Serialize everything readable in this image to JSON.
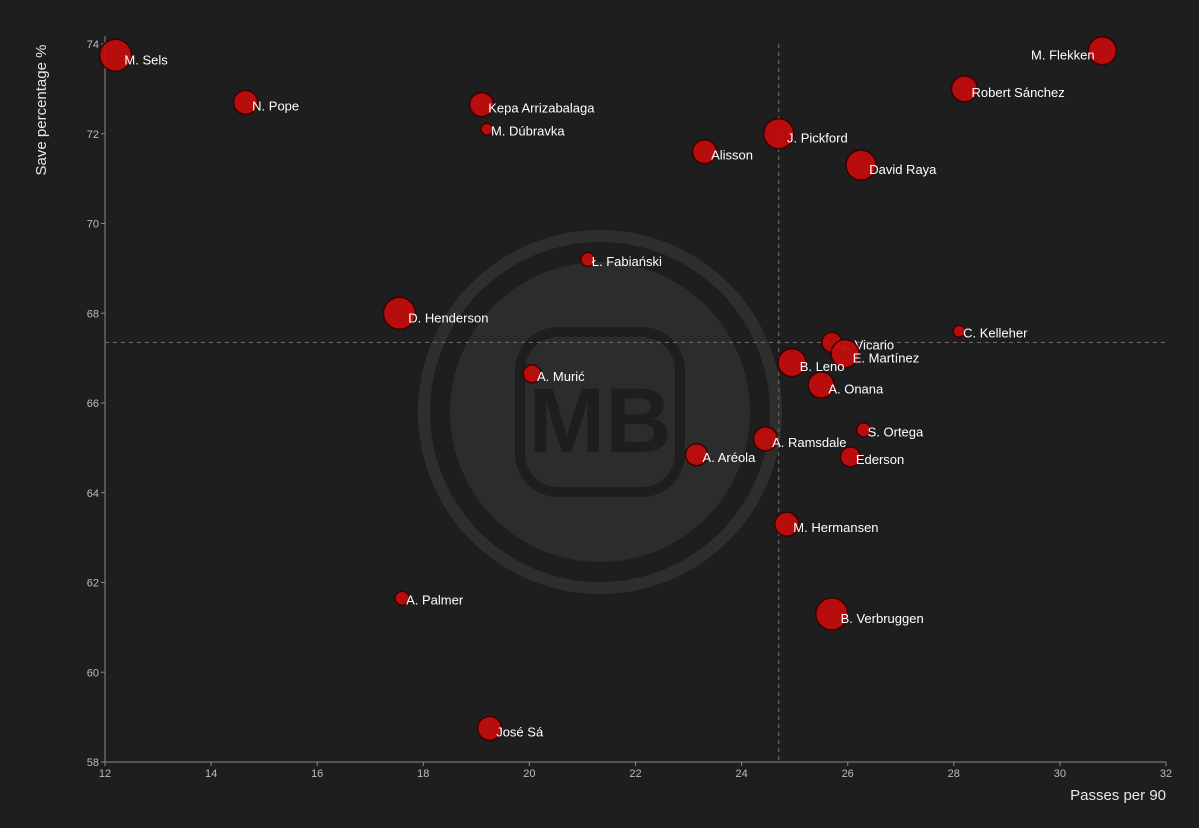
{
  "chart_data": {
    "type": "scatter",
    "xlabel": "Passes per 90",
    "ylabel": "Save percentage %",
    "xlim": [
      12,
      32
    ],
    "ylim": [
      58,
      74
    ],
    "x_ticks": [
      12,
      14,
      16,
      18,
      20,
      22,
      24,
      26,
      28,
      30,
      32
    ],
    "y_ticks": [
      58,
      60,
      62,
      64,
      66,
      68,
      70,
      72,
      74
    ],
    "x_reference": 24.7,
    "y_reference": 67.35,
    "grid": false,
    "point_color": "#c00d0d",
    "background": "#1e1e1e",
    "points": [
      {
        "label": "M. Sels",
        "x": 12.2,
        "y": 73.75,
        "size": 16
      },
      {
        "label": "N. Pope",
        "x": 14.65,
        "y": 72.7,
        "size": 12
      },
      {
        "label": "Kepa Arrizabalaga",
        "x": 19.1,
        "y": 72.65,
        "size": 12
      },
      {
        "label": "M. Dúbravka",
        "x": 19.2,
        "y": 72.1,
        "size": 6
      },
      {
        "label": "Ł. Fabiański",
        "x": 21.1,
        "y": 69.2,
        "size": 7
      },
      {
        "label": "D. Henderson",
        "x": 17.55,
        "y": 68.0,
        "size": 16
      },
      {
        "label": "A. Murić",
        "x": 20.05,
        "y": 66.65,
        "size": 9
      },
      {
        "label": "A. Palmer",
        "x": 17.6,
        "y": 61.65,
        "size": 7
      },
      {
        "label": "José Sá",
        "x": 19.25,
        "y": 58.75,
        "size": 12
      },
      {
        "label": "Alisson",
        "x": 23.3,
        "y": 71.6,
        "size": 12
      },
      {
        "label": "J. Pickford",
        "x": 24.7,
        "y": 72.0,
        "size": 15
      },
      {
        "label": "David Raya",
        "x": 26.25,
        "y": 71.3,
        "size": 15
      },
      {
        "label": "M. Flekken",
        "x": 30.8,
        "y": 73.85,
        "size": 14
      },
      {
        "label": "Robert Sánchez",
        "x": 28.2,
        "y": 73.0,
        "size": 13
      },
      {
        "label": "C. Kelleher",
        "x": 28.1,
        "y": 67.6,
        "size": 6
      },
      {
        "label": "G. Vicario",
        "x": 25.7,
        "y": 67.35,
        "size": 10
      },
      {
        "label": "E. Martínez",
        "x": 25.95,
        "y": 67.1,
        "size": 14
      },
      {
        "label": "B. Leno",
        "x": 24.95,
        "y": 66.9,
        "size": 14
      },
      {
        "label": "A. Onana",
        "x": 25.5,
        "y": 66.4,
        "size": 13
      },
      {
        "label": "S. Ortega",
        "x": 26.3,
        "y": 65.4,
        "size": 7
      },
      {
        "label": "A. Ramsdale",
        "x": 24.45,
        "y": 65.2,
        "size": 12
      },
      {
        "label": "Ederson",
        "x": 26.05,
        "y": 64.8,
        "size": 10
      },
      {
        "label": "A. Aréola",
        "x": 23.15,
        "y": 64.85,
        "size": 11
      },
      {
        "label": "M. Hermansen",
        "x": 24.85,
        "y": 63.3,
        "size": 12
      },
      {
        "label": "B. Verbruggen",
        "x": 25.7,
        "y": 61.3,
        "size": 16
      }
    ]
  }
}
